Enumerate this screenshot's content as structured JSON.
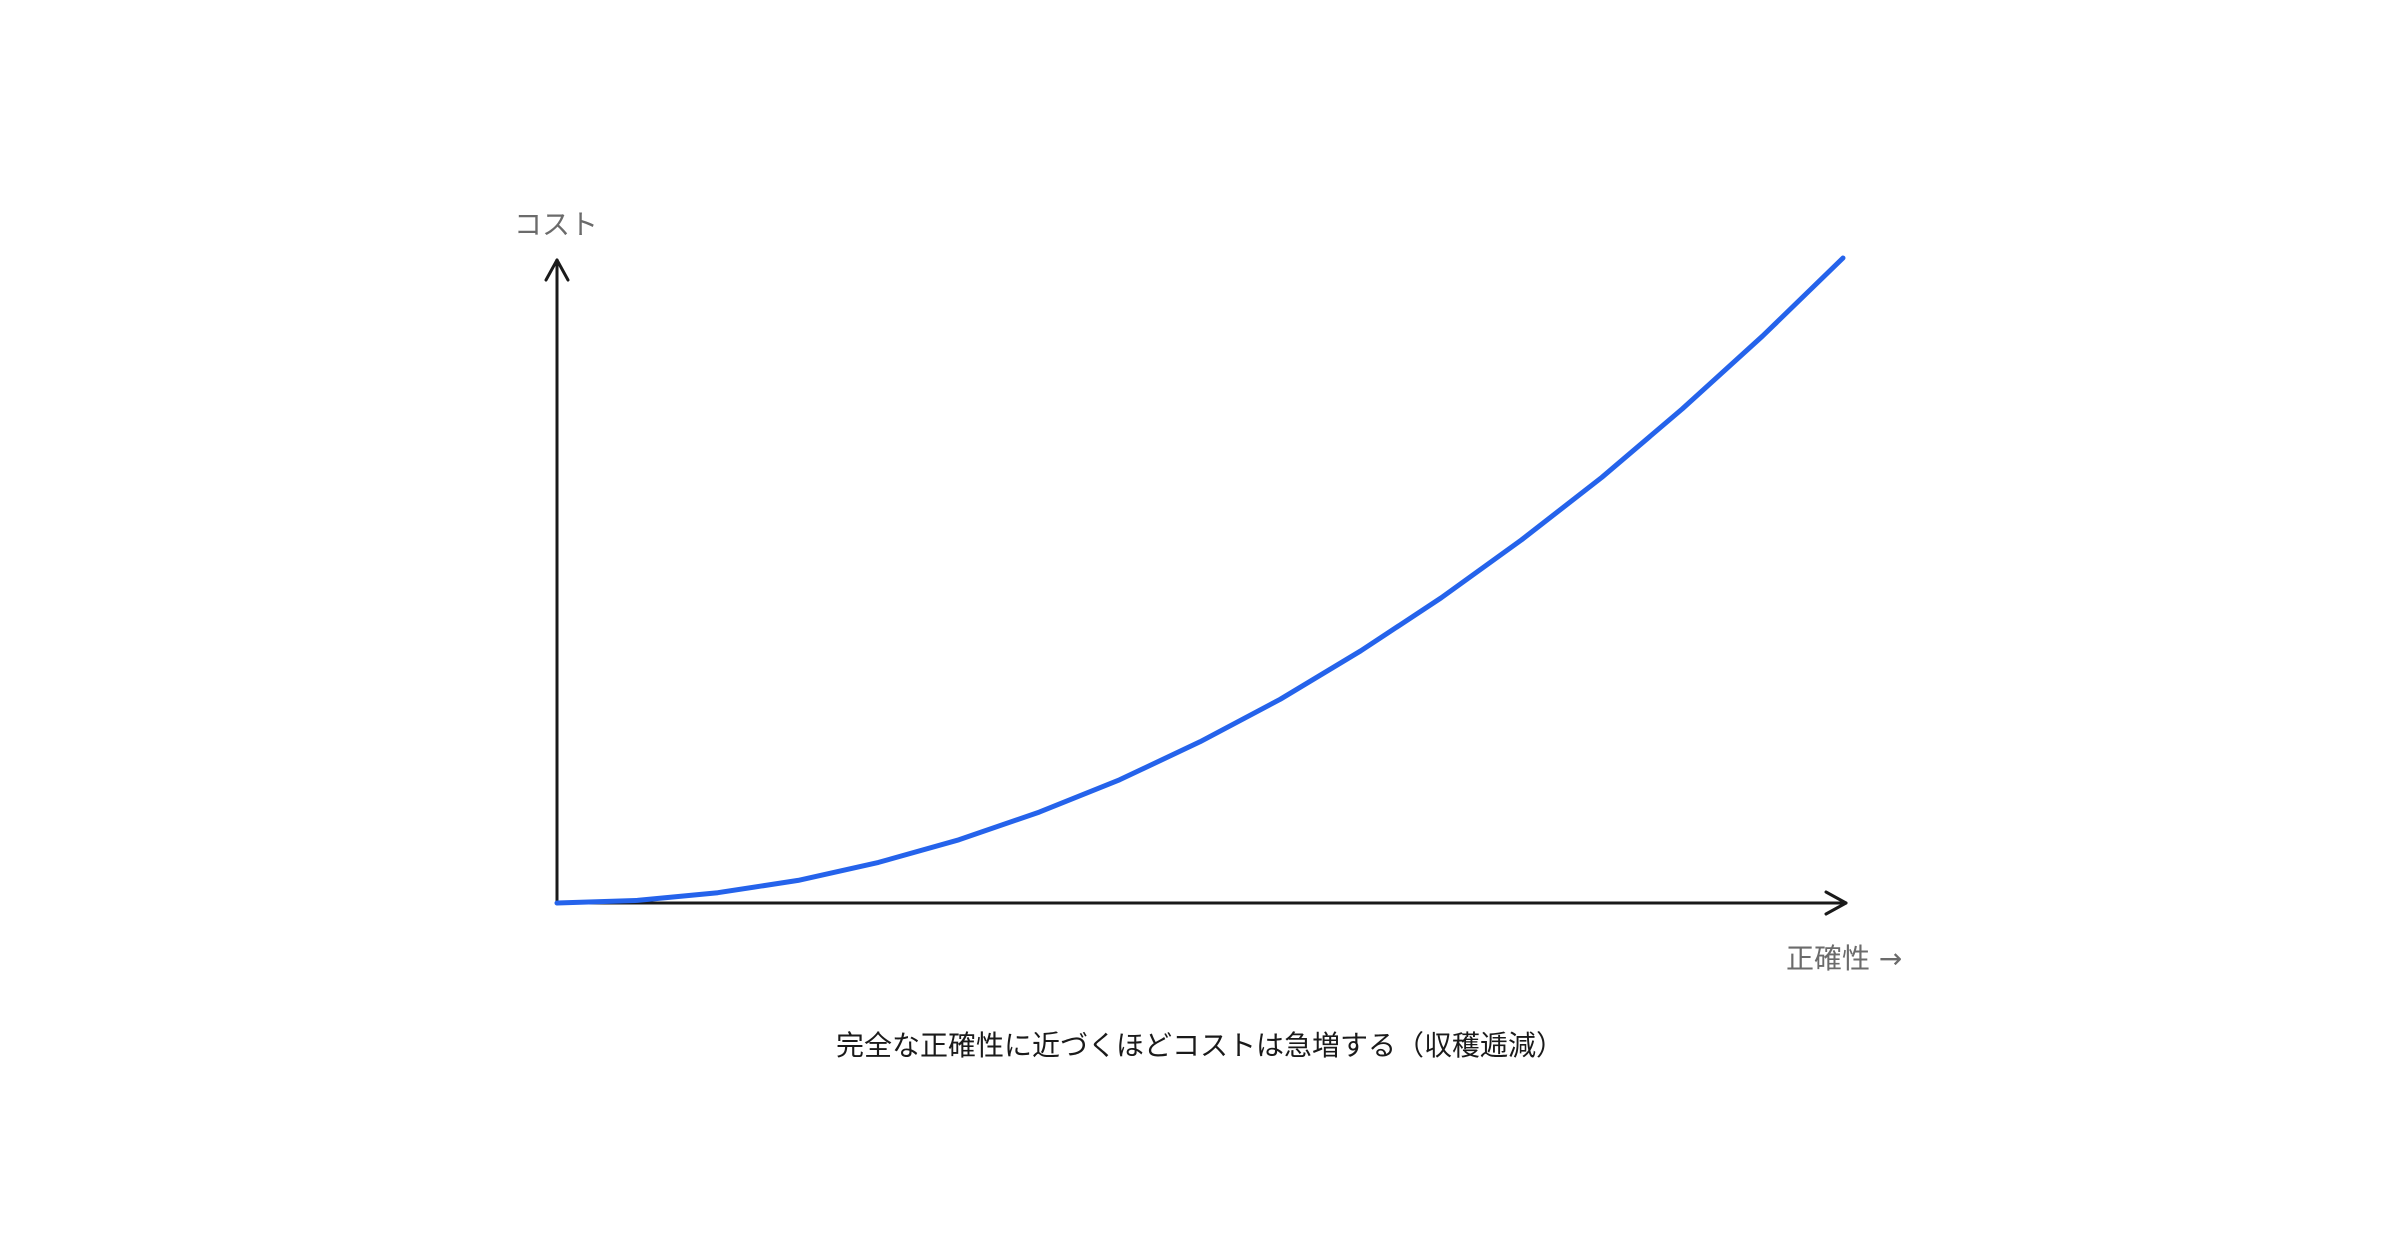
{
  "chart_data": {
    "type": "line",
    "title": "",
    "xlabel": "正確性 →",
    "ylabel": "コスト",
    "caption": "完全な正確性に近づくほどコストは急増する（収穫逓減）",
    "xlim": [
      0,
      1
    ],
    "ylim": [
      0,
      1
    ],
    "grid": false,
    "legend": "none",
    "colors": {
      "curve": "#2563eb",
      "axis": "#1a1a1a",
      "label": "#6b6b6b",
      "caption": "#1a1a1a"
    },
    "series": [
      {
        "x": [
          0,
          0.0625,
          0.125,
          0.1875,
          0.25,
          0.3125,
          0.375,
          0.4375,
          0.5,
          0.5625,
          0.625,
          0.6875,
          0.75,
          0.8125,
          0.875,
          0.9375,
          1.0
        ],
        "values": [
          0,
          0.004,
          0.016,
          0.035,
          0.063,
          0.098,
          0.141,
          0.191,
          0.25,
          0.316,
          0.391,
          0.473,
          0.563,
          0.66,
          0.766,
          0.879,
          1.0
        ]
      }
    ]
  }
}
